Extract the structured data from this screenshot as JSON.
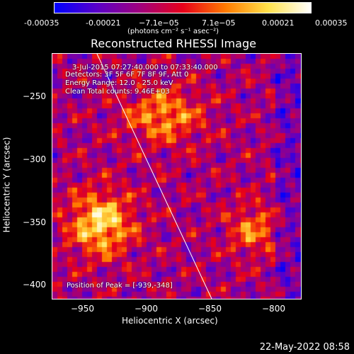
{
  "colorbar": {
    "labels": [
      "-0.00035",
      "-0.00021",
      "−7.1e−05",
      "7.1e−05",
      "0.00021",
      "0.00035"
    ],
    "unit": "(photons cm⁻² s⁻¹ asec⁻²)",
    "colors": [
      "#0000ff",
      "#5a00c8",
      "#a0007d",
      "#e8001a",
      "#ff7a00",
      "#ffe14a",
      "#ffffff"
    ]
  },
  "title": "Reconstructed RHESSI Image",
  "annotations": {
    "time": "3-Jul-2015 07:27:40.000 to 07:33:40.000",
    "detectors": "Detectors: 3F 5F 6F 7F 8F 9F, Att 0",
    "energy": "Energy Range: 12.0 - 25.0 keV",
    "clean": "Clean      Total counts: 9.46E+03",
    "peak": "Position of Peak = [-939,-348]"
  },
  "chart_data": {
    "type": "heatmap",
    "title": "Reconstructed RHESSI Image",
    "xlabel": "Heliocentric X (arcsec)",
    "ylabel": "Heliocentric Y (arcsec)",
    "xlim": [
      -975,
      -780
    ],
    "ylim": [
      -410,
      -215
    ],
    "xticks": [
      -950,
      -900,
      -850,
      -800
    ],
    "yticks": [
      -250,
      -300,
      -350,
      -400
    ],
    "xtick_labels": [
      "−950",
      "−900",
      "−850",
      "−800"
    ],
    "ytick_labels": [
      "−250",
      "−300",
      "−350",
      "−400"
    ],
    "peak": [
      -939,
      -348
    ],
    "limb_line": [
      [
        -940,
        -215
      ],
      [
        -850,
        -410
      ]
    ]
  },
  "footer_date": "22-May-2022 08:58"
}
